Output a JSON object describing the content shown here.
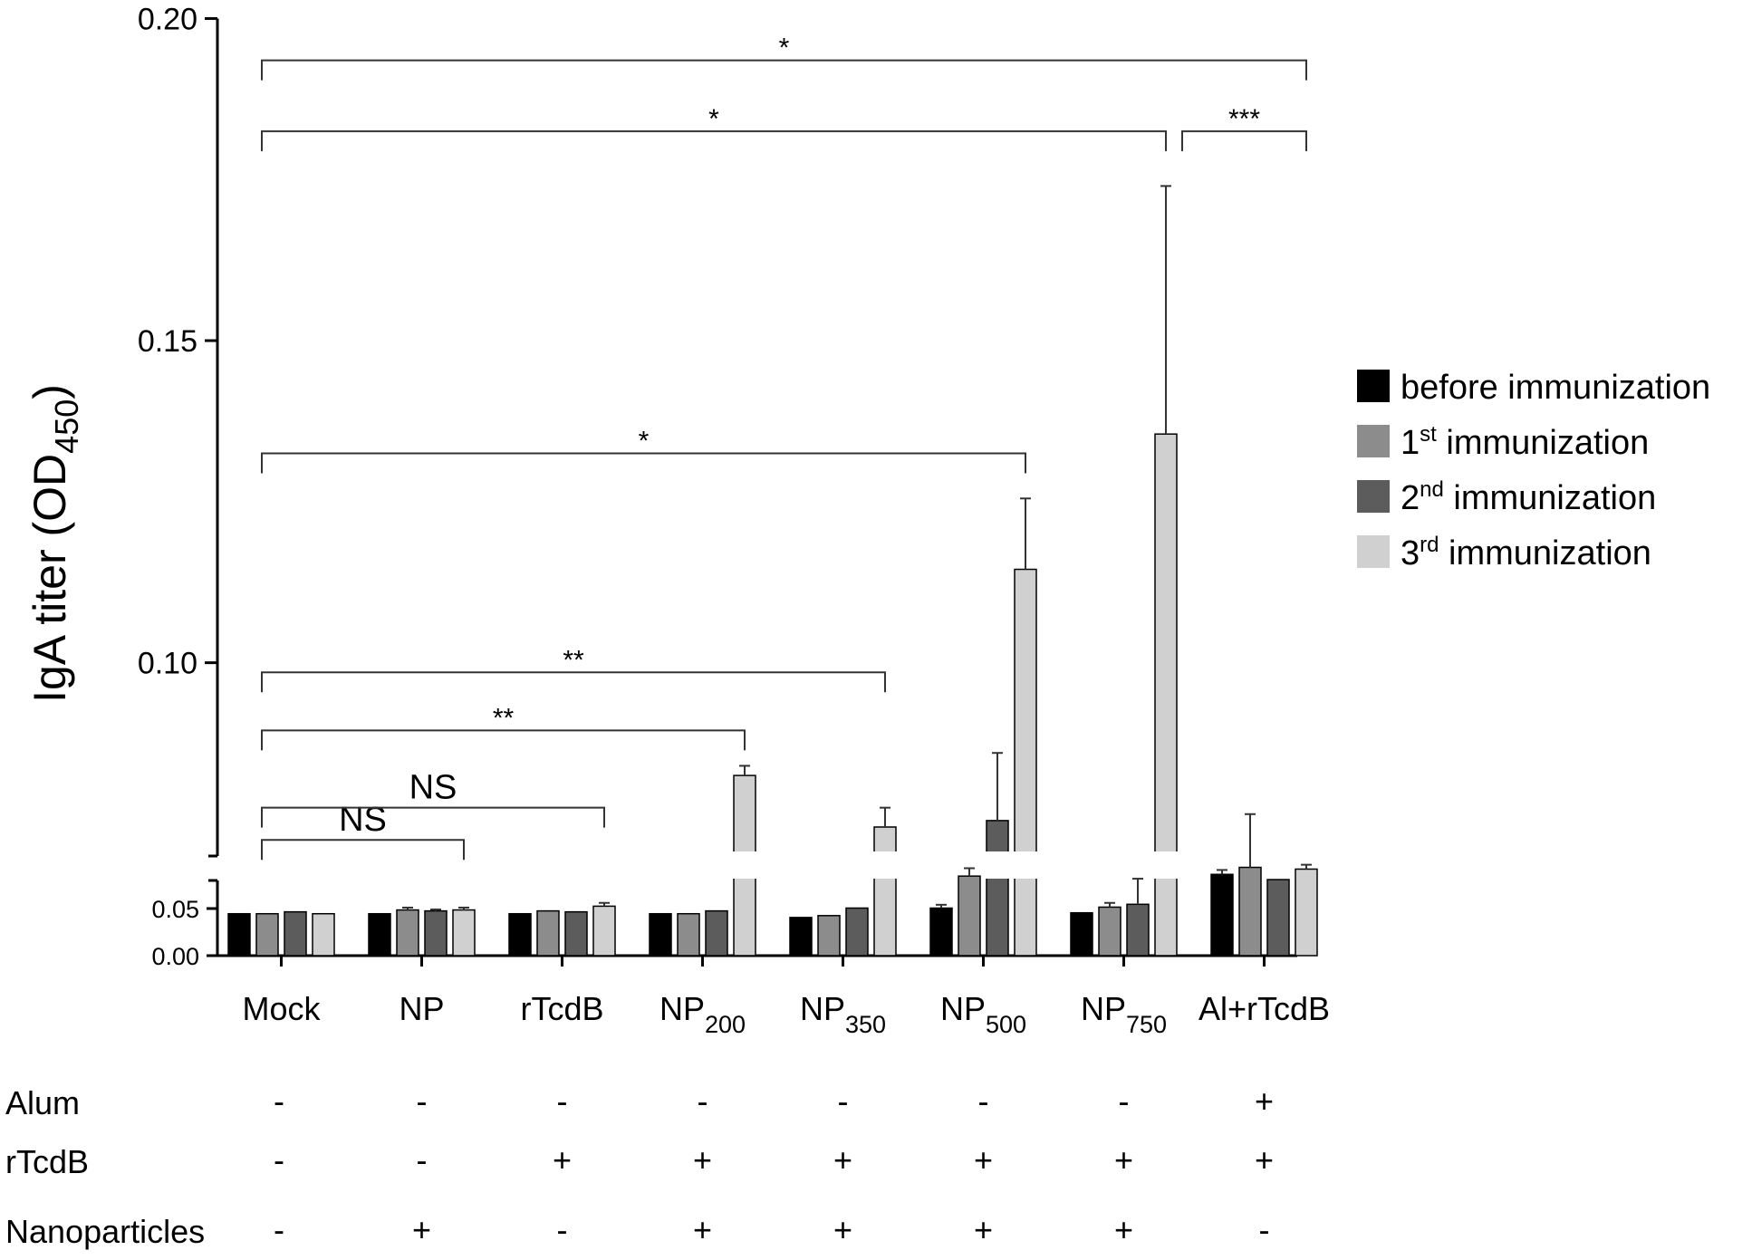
{
  "chart_data": {
    "type": "bar",
    "ylabel": "IgA titer (OD",
    "ylabel_sub": "450",
    "ylabel_end": ")",
    "ylim": [
      0,
      0.2
    ],
    "axis_break": [
      0.056,
      0.07
    ],
    "yticks_upper": [
      "0.10",
      "0.15",
      "0.20"
    ],
    "yticks_lower": [
      "0.00",
      "0.05"
    ],
    "categories": [
      {
        "main": "Mock",
        "sub": ""
      },
      {
        "main": "NP",
        "sub": ""
      },
      {
        "main": "rTcdB",
        "sub": ""
      },
      {
        "main": "NP",
        "sub": "200"
      },
      {
        "main": "NP",
        "sub": "350"
      },
      {
        "main": "NP",
        "sub": "500"
      },
      {
        "main": "NP",
        "sub": "750"
      },
      {
        "main": "Al+rTcdB",
        "sub": ""
      }
    ],
    "legend_position": "right",
    "series": [
      {
        "name_pre": "before immunization",
        "name_sup": "",
        "name_post": "",
        "color": "#000000",
        "values": [
          0.0445,
          0.0445,
          0.0445,
          0.0445,
          0.0405,
          0.0505,
          0.0455,
          0.0595
        ],
        "errors": [
          0.0,
          0.0,
          0.0,
          0.0,
          0.0,
          0.0035,
          0.0,
          0.0025
        ]
      },
      {
        "name_pre": "1",
        "name_sup": "st",
        "name_post": " immunization",
        "color": "#8c8c8c",
        "values": [
          0.0445,
          0.0485,
          0.0475,
          0.0445,
          0.0425,
          0.0585,
          0.0515,
          0.0635
        ],
        "errors": [
          0.0,
          0.0025,
          0.0,
          0.0,
          0.0,
          0.0045,
          0.0045,
          0.013
        ]
      },
      {
        "name_pre": "2",
        "name_sup": "nd",
        "name_post": " immunization",
        "color": "#5c5c5c",
        "values": [
          0.0465,
          0.0475,
          0.0465,
          0.0475,
          0.0505,
          0.0755,
          0.0545,
          0.0565
        ],
        "errors": [
          0.0,
          0.0015,
          0.0,
          0.0,
          0.0,
          0.0105,
          0.0025,
          0.0
        ],
        "clip_below_break": [
          false,
          false,
          false,
          false,
          false,
          true,
          false,
          false
        ]
      },
      {
        "name_pre": "3",
        "name_sup": "rd",
        "name_post": " immunization",
        "color": "#d0d0d0",
        "values": [
          0.0445,
          0.0485,
          0.0525,
          0.0825,
          0.0745,
          0.1145,
          0.1355,
          0.0625
        ],
        "errors": [
          0.0,
          0.0025,
          0.0035,
          0.0015,
          0.003,
          0.011,
          0.0385,
          0.0025
        ],
        "clip_below_break": [
          false,
          false,
          false,
          true,
          true,
          true,
          true,
          false
        ]
      }
    ],
    "annotations": [
      {
        "label": "NS",
        "from": 0,
        "to": 1,
        "y": 0.0725,
        "style": "ns"
      },
      {
        "label": "NS",
        "from": 0,
        "to": 2,
        "y": 0.0775,
        "style": "ns"
      },
      {
        "label": "**",
        "from": 0,
        "to": 3,
        "y": 0.0895,
        "style": "star"
      },
      {
        "label": "**",
        "from": 0,
        "to": 4,
        "y": 0.0985,
        "style": "star"
      },
      {
        "label": "*",
        "from": 0,
        "to": 5,
        "y": 0.1325,
        "style": "star"
      },
      {
        "label": "*",
        "from": 0,
        "to": 6,
        "y": 0.1825,
        "style": "star"
      },
      {
        "label": "***",
        "from": 6,
        "to": 7,
        "y": 0.1825,
        "style": "star"
      },
      {
        "label": "*",
        "from": 0,
        "to": 7,
        "y": 0.1935,
        "style": "star"
      }
    ]
  },
  "table": {
    "rows": [
      {
        "label": "Alum",
        "signs": [
          "-",
          "-",
          "-",
          "-",
          "-",
          "-",
          "-",
          "+"
        ]
      },
      {
        "label": "rTcdB",
        "signs": [
          "-",
          "-",
          "+",
          "+",
          "+",
          "+",
          "+",
          "+"
        ]
      },
      {
        "label": "Nanoparticles",
        "signs": [
          "-",
          "+",
          "-",
          "+",
          "+",
          "+",
          "+",
          "-"
        ]
      }
    ]
  }
}
